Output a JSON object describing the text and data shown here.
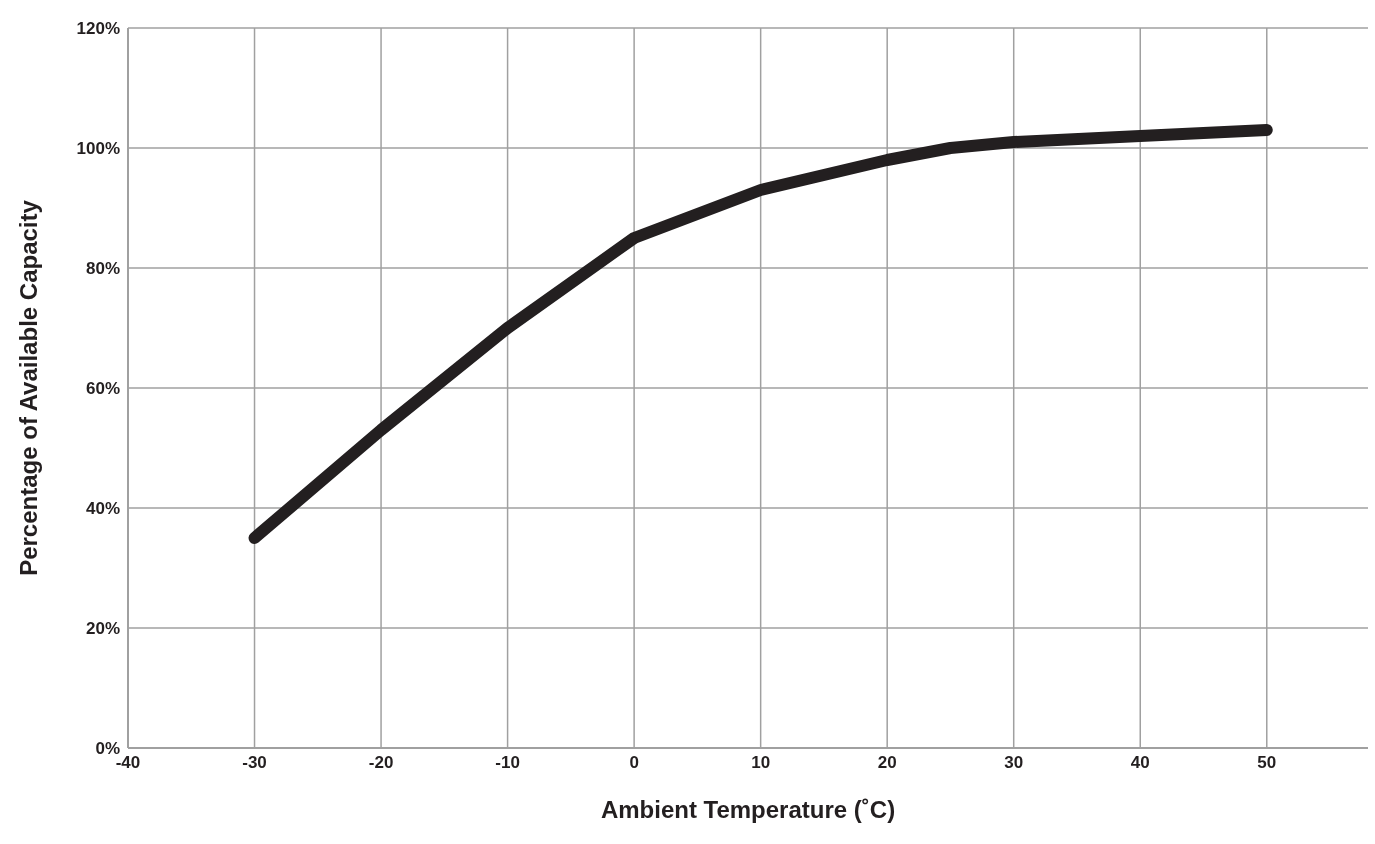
{
  "chart_data": {
    "type": "line",
    "xlabel": "Ambient Temperature (˚C)",
    "ylabel": "Percentage of Available Capacity",
    "x": [
      -30,
      -20,
      -10,
      0,
      10,
      20,
      25,
      30,
      40,
      50
    ],
    "series": [
      {
        "color": "#231f20",
        "values": [
          35,
          53,
          70,
          85,
          93,
          98,
          100,
          101,
          102,
          103
        ]
      }
    ],
    "xlim": [
      -40,
      58
    ],
    "xticks": [
      -40,
      -30,
      -20,
      -10,
      0,
      10,
      20,
      30,
      40,
      50
    ],
    "ylim": [
      0,
      120
    ],
    "yticks": [
      {
        "value": 0,
        "label": "0%"
      },
      {
        "value": 20,
        "label": "20%"
      },
      {
        "value": 40,
        "label": "40%"
      },
      {
        "value": 60,
        "label": "60%"
      },
      {
        "value": 80,
        "label": "80%"
      },
      {
        "value": 100,
        "label": "100%"
      },
      {
        "value": 120,
        "label": "120%"
      }
    ],
    "grid": true,
    "marker": "none",
    "line_style": "solid",
    "legend": false
  }
}
